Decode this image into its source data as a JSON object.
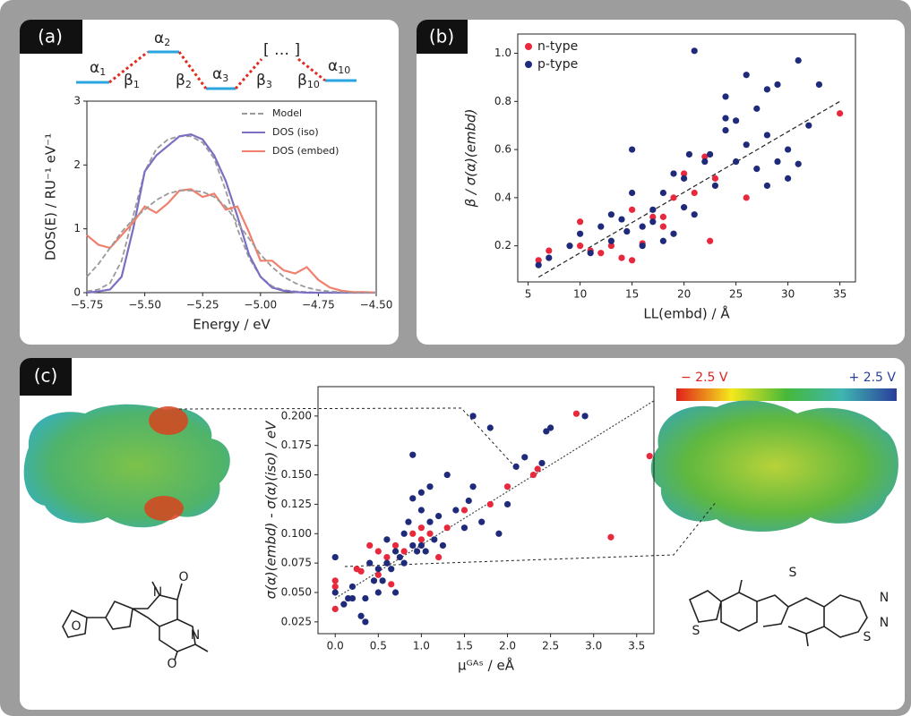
{
  "panel_labels": [
    "(a)",
    "(b)",
    "(c)"
  ],
  "level_diagram": {
    "levels": [
      {
        "symbol": "α",
        "index": "1"
      },
      {
        "symbol": "α",
        "index": "2"
      },
      {
        "symbol": "α",
        "index": "3"
      },
      {
        "symbol": "[ … ]",
        "index": ""
      },
      {
        "symbol": "α",
        "index": "10"
      }
    ],
    "couplings": [
      {
        "symbol": "β",
        "index": "1"
      },
      {
        "symbol": "β",
        "index": "2"
      },
      {
        "symbol": "β",
        "index": "3"
      },
      {
        "symbol": "β",
        "index": "10"
      }
    ]
  },
  "colorbar": {
    "min_label": "− 2.5 V",
    "max_label": "+ 2.5 V"
  },
  "structures": {
    "left_atoms": [
      "O",
      "N",
      "O",
      "N",
      "O"
    ],
    "right_atoms": [
      "S",
      "S",
      "N",
      "N",
      "S"
    ]
  },
  "chart_data": [
    {
      "type": "line",
      "xlabel": "Energy / eV",
      "ylabel": "DOS(E) / RU⁻¹ eV⁻¹",
      "legend": "upper right",
      "x": [
        -5.75,
        -5.7,
        -5.65,
        -5.6,
        -5.55,
        -5.5,
        -5.45,
        -5.4,
        -5.35,
        -5.3,
        -5.25,
        -5.2,
        -5.15,
        -5.1,
        -5.05,
        -5.0,
        -4.95,
        -4.9,
        -4.85,
        -4.8,
        -4.75,
        -4.7,
        -4.65,
        -4.6,
        -4.55,
        -4.5
      ],
      "xlim": [
        -5.75,
        -4.5
      ],
      "xticks": [
        {
          "value": -5.75,
          "label": "−5.75"
        },
        {
          "value": -5.5,
          "label": "−5.50"
        },
        {
          "value": -5.25,
          "label": "−5.25"
        },
        {
          "value": -5.0,
          "label": "−5.00"
        },
        {
          "value": -4.75,
          "label": "−4.75"
        },
        {
          "value": -4.5,
          "label": "−4.50"
        }
      ],
      "ylim": [
        0,
        3
      ],
      "yticks": [
        0,
        1,
        2,
        3
      ],
      "series": [
        {
          "name": "Model",
          "color": "#9a9a9a",
          "dashed": true,
          "values": [
            0.02,
            0.05,
            0.15,
            0.5,
            1.2,
            1.9,
            2.25,
            2.4,
            2.45,
            2.45,
            2.35,
            2.1,
            1.6,
            1.0,
            0.55,
            0.25,
            0.1,
            0.04,
            0.02,
            0.01,
            0,
            0,
            0,
            0,
            0,
            0
          ]
        },
        {
          "name": "DOS (iso)",
          "color": "#7b6fc2",
          "dashed": false,
          "values": [
            0.0,
            0.02,
            0.05,
            0.25,
            1.0,
            1.9,
            2.15,
            2.3,
            2.45,
            2.48,
            2.4,
            2.15,
            1.75,
            1.2,
            0.6,
            0.25,
            0.08,
            0.03,
            0.01,
            0,
            0,
            0,
            0,
            0,
            0,
            0
          ]
        },
        {
          "name": "DOS (embed)",
          "color": "#f17f6c",
          "dashed": false,
          "values": [
            0.9,
            0.75,
            0.7,
            0.9,
            1.1,
            1.35,
            1.25,
            1.4,
            1.6,
            1.62,
            1.5,
            1.55,
            1.3,
            1.35,
            0.95,
            0.5,
            0.5,
            0.35,
            0.3,
            0.4,
            0.2,
            0.08,
            0.03,
            0.01,
            0.01,
            0
          ]
        },
        {
          "color": "#9a9a9a",
          "dashed": true,
          "values": [
            0.25,
            0.45,
            0.7,
            0.95,
            1.15,
            1.3,
            1.45,
            1.55,
            1.6,
            1.6,
            1.58,
            1.5,
            1.35,
            1.1,
            0.85,
            0.6,
            0.4,
            0.25,
            0.15,
            0.08,
            0.04,
            0.02,
            0.01,
            0,
            0,
            0
          ]
        }
      ]
    },
    {
      "type": "scatter",
      "xlabel": "LL(embd) / Å",
      "ylabel": "β / σ(α)(embd)",
      "legend": "upper left",
      "xlim": [
        4,
        36.5
      ],
      "xticks": [
        5,
        10,
        15,
        20,
        25,
        30,
        35
      ],
      "ylim": [
        0.05,
        1.08
      ],
      "yticks": [
        0.2,
        0.4,
        0.6,
        0.8,
        {
          "value": 1.0,
          "label": "1.0"
        }
      ],
      "series": [
        {
          "name": "n-type",
          "color": "#e8283c",
          "x": [
            6,
            7,
            10,
            10,
            11,
            12,
            13,
            14,
            15,
            15,
            17,
            18,
            18,
            19,
            20,
            21,
            22,
            22.5,
            23,
            26,
            35,
            16
          ],
          "y": [
            0.14,
            0.18,
            0.3,
            0.2,
            0.18,
            0.17,
            0.2,
            0.15,
            0.14,
            0.35,
            0.32,
            0.32,
            0.28,
            0.4,
            0.5,
            0.42,
            0.57,
            0.22,
            0.48,
            0.4,
            0.75,
            0.21
          ]
        },
        {
          "name": "p-type",
          "color": "#1f2a7a",
          "x": [
            6,
            7,
            9,
            10,
            11,
            12,
            13,
            13,
            14,
            14.5,
            15,
            15,
            16,
            16,
            17,
            17,
            18,
            18,
            19,
            19,
            20,
            20,
            20.5,
            21,
            21,
            22,
            22.5,
            23,
            24,
            24,
            25,
            25,
            26,
            26,
            27,
            27,
            28,
            28,
            29,
            30,
            30,
            31,
            31,
            32,
            33,
            28,
            24,
            29
          ],
          "y": [
            0.12,
            0.15,
            0.2,
            0.25,
            0.17,
            0.28,
            0.22,
            0.33,
            0.31,
            0.26,
            0.6,
            0.42,
            0.2,
            0.28,
            0.35,
            0.3,
            0.42,
            0.22,
            0.5,
            0.25,
            0.36,
            0.48,
            0.58,
            1.01,
            0.33,
            0.55,
            0.58,
            0.45,
            0.68,
            0.73,
            0.72,
            0.55,
            0.91,
            0.62,
            0.77,
            0.52,
            0.66,
            0.45,
            0.55,
            0.6,
            0.48,
            0.97,
            0.54,
            0.7,
            0.87,
            0.85,
            0.82,
            0.87
          ]
        }
      ],
      "fit": {
        "color": "#222222",
        "x": [
          6,
          35
        ],
        "y": [
          0.07,
          0.8
        ]
      }
    },
    {
      "type": "scatter",
      "xlabel": "μᴳᴬˢ / eÅ",
      "ylabel": "σ(α)(embd) - σ(α)(iso) / eV",
      "legend": "none",
      "xlim": [
        -0.2,
        3.7
      ],
      "xticks": [
        {
          "value": 0.0,
          "label": "0.0"
        },
        0.5,
        {
          "value": 1.0,
          "label": "1.0"
        },
        1.5,
        {
          "value": 2.0,
          "label": "2.0"
        },
        2.5,
        {
          "value": 3.0,
          "label": "3.0"
        },
        3.5
      ],
      "ylim": [
        0.015,
        0.225
      ],
      "yticks": [
        0.025,
        {
          "value": 0.05,
          "label": "0.050"
        },
        0.075,
        {
          "value": 0.1,
          "label": "0.100"
        },
        0.125,
        {
          "value": 0.15,
          "label": "0.150"
        },
        0.175,
        {
          "value": 0.2,
          "label": "0.200"
        }
      ],
      "series": [
        {
          "name": "n-type",
          "color": "#e8283c",
          "x": [
            0,
            0,
            0,
            0.25,
            0.3,
            0.4,
            0.5,
            0.6,
            0.65,
            0.7,
            0.8,
            0.9,
            1.0,
            1.0,
            1.1,
            1.2,
            1.3,
            1.5,
            1.8,
            2.0,
            2.3,
            2.35,
            2.8,
            3.2,
            3.65,
            0.5
          ],
          "y": [
            0.036,
            0.055,
            0.06,
            0.07,
            0.068,
            0.09,
            0.065,
            0.08,
            0.057,
            0.09,
            0.085,
            0.1,
            0.095,
            0.105,
            0.1,
            0.08,
            0.105,
            0.12,
            0.125,
            0.14,
            0.15,
            0.155,
            0.202,
            0.097,
            0.166,
            0.085
          ]
        },
        {
          "name": "p-type",
          "color": "#1f2a7a",
          "x": [
            0,
            0,
            0.1,
            0.15,
            0.2,
            0.3,
            0.35,
            0.35,
            0.4,
            0.45,
            0.5,
            0.5,
            0.55,
            0.6,
            0.6,
            0.65,
            0.7,
            0.75,
            0.8,
            0.8,
            0.85,
            0.9,
            0.9,
            0.95,
            1.0,
            1.0,
            1.05,
            1.1,
            1.1,
            1.15,
            1.2,
            1.25,
            1.3,
            1.4,
            1.5,
            1.55,
            1.6,
            1.6,
            1.7,
            1.8,
            1.9,
            2.0,
            2.1,
            2.2,
            2.4,
            2.45,
            2.5,
            2.9,
            0.9,
            1.0,
            0.2,
            0.7
          ],
          "y": [
            0.08,
            0.05,
            0.04,
            0.045,
            0.055,
            0.03,
            0.025,
            0.045,
            0.075,
            0.06,
            0.07,
            0.05,
            0.06,
            0.075,
            0.095,
            0.07,
            0.085,
            0.08,
            0.075,
            0.1,
            0.11,
            0.09,
            0.13,
            0.085,
            0.09,
            0.12,
            0.085,
            0.11,
            0.14,
            0.095,
            0.115,
            0.09,
            0.15,
            0.12,
            0.105,
            0.128,
            0.2,
            0.14,
            0.11,
            0.19,
            0.1,
            0.125,
            0.157,
            0.165,
            0.16,
            0.187,
            0.19,
            0.2,
            0.167,
            0.135,
            0.045,
            0.05
          ]
        }
      ],
      "fit": {
        "color": "#444444",
        "x": [
          0,
          3.7
        ],
        "y": [
          0.045,
          0.213
        ]
      }
    }
  ]
}
